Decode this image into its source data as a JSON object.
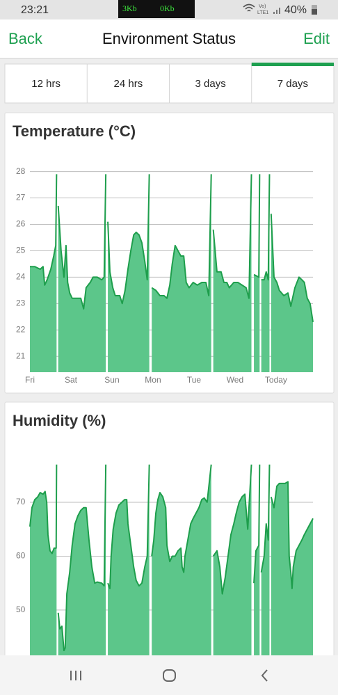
{
  "status_bar": {
    "time": "23:21",
    "upload": "3Kb",
    "download": "0Kb",
    "volte": "Vo)",
    "network": "LTE1",
    "battery": "40%"
  },
  "nav": {
    "back": "Back",
    "title": "Environment Status",
    "edit": "Edit"
  },
  "tabs": {
    "items": [
      "12 hrs",
      "24 hrs",
      "3 days",
      "7 days"
    ],
    "selected": 3
  },
  "chart_data": [
    {
      "type": "area",
      "title": "Temperature (°C)",
      "color": "#5cc68a",
      "line_color": "#1e9e4c",
      "grid": true,
      "xlim": [
        0,
        6.9
      ],
      "ylim": [
        20.4,
        28.2
      ],
      "yticks": [
        21,
        22,
        23,
        24,
        25,
        26,
        27,
        28
      ],
      "xticks": [
        {
          "value": 0,
          "label": "Fri"
        },
        {
          "value": 1,
          "label": "Sat"
        },
        {
          "value": 2,
          "label": "Sun"
        },
        {
          "value": 3,
          "label": "Mon"
        },
        {
          "value": 4,
          "label": "Tue"
        },
        {
          "value": 5,
          "label": "Wed"
        },
        {
          "value": 6,
          "label": "Today"
        }
      ],
      "x": [
        0,
        0.12,
        0.25,
        0.32,
        0.36,
        0.42,
        0.51,
        0.58,
        0.63,
        0.65,
        0.67,
        0.69,
        0.76,
        0.83,
        0.88,
        0.92,
        0.97,
        1.03,
        1.14,
        1.24,
        1.31,
        1.37,
        1.47,
        1.54,
        1.64,
        1.75,
        1.81,
        1.85,
        1.87,
        1.9,
        1.95,
        2.02,
        2.08,
        2.19,
        2.25,
        2.32,
        2.39,
        2.46,
        2.53,
        2.59,
        2.66,
        2.73,
        2.8,
        2.86,
        2.91,
        2.94,
        2.97,
        3.07,
        3.17,
        3.27,
        3.34,
        3.41,
        3.47,
        3.54,
        3.61,
        3.68,
        3.75,
        3.81,
        3.88,
        3.98,
        4.08,
        4.19,
        4.29,
        4.36,
        4.42,
        4.45,
        4.47,
        4.56,
        4.66,
        4.73,
        4.8,
        4.86,
        4.97,
        5.07,
        5.17,
        5.27,
        5.34,
        5.4,
        5.43,
        5.46,
        5.58,
        5.6,
        5.62,
        5.64,
        5.71,
        5.76,
        5.81,
        5.84,
        5.86,
        5.88,
        5.95,
        6.02,
        6.08,
        6.19,
        6.29,
        6.36,
        6.46,
        6.56,
        6.63,
        6.69,
        6.76,
        6.83,
        6.9
      ],
      "values": [
        24.4,
        24.4,
        24.3,
        24.4,
        23.7,
        23.9,
        24.3,
        24.8,
        25.2,
        27.9,
        null,
        26.7,
        25.0,
        24.0,
        25.2,
        23.8,
        23.4,
        23.2,
        23.2,
        23.2,
        22.8,
        23.6,
        23.8,
        24.0,
        24.0,
        23.9,
        24.0,
        27.9,
        null,
        26.1,
        24.2,
        23.6,
        23.3,
        23.3,
        23.0,
        23.5,
        24.3,
        25.0,
        25.6,
        25.7,
        25.6,
        25.3,
        24.6,
        23.9,
        27.9,
        null,
        23.6,
        23.5,
        23.3,
        23.3,
        23.2,
        23.7,
        24.5,
        25.2,
        25.0,
        24.8,
        24.8,
        23.8,
        23.6,
        23.8,
        23.7,
        23.8,
        23.8,
        23.3,
        27.9,
        null,
        25.8,
        24.2,
        24.2,
        23.8,
        23.8,
        23.6,
        23.8,
        23.8,
        23.7,
        23.6,
        23.2,
        27.9,
        null,
        24.1,
        24.0,
        27.9,
        null,
        23.9,
        23.9,
        24.2,
        23.9,
        27.9,
        null,
        26.4,
        24.0,
        23.8,
        23.5,
        23.3,
        23.4,
        22.9,
        23.6,
        24.0,
        23.9,
        23.8,
        23.2,
        23.0,
        22.3
      ]
    },
    {
      "type": "area",
      "title": "Humidity (%)",
      "color": "#5cc68a",
      "line_color": "#1e9e4c",
      "grid": true,
      "xlim": [
        0,
        6.9
      ],
      "ylim": [
        41.6,
        78
      ],
      "yticks": [
        50,
        60,
        70
      ],
      "x": [
        0,
        0.05,
        0.12,
        0.19,
        0.25,
        0.32,
        0.37,
        0.41,
        0.44,
        0.49,
        0.54,
        0.59,
        0.64,
        0.65,
        0.67,
        0.69,
        0.73,
        0.78,
        0.83,
        0.86,
        0.9,
        0.97,
        1.03,
        1.1,
        1.17,
        1.24,
        1.31,
        1.37,
        1.44,
        1.51,
        1.58,
        1.64,
        1.75,
        1.81,
        1.85,
        1.87,
        1.9,
        1.95,
        1.98,
        2.03,
        2.1,
        2.17,
        2.24,
        2.31,
        2.36,
        2.39,
        2.46,
        2.53,
        2.59,
        2.66,
        2.73,
        2.8,
        2.86,
        2.91,
        2.94,
        2.97,
        3.02,
        3.07,
        3.12,
        3.17,
        3.24,
        3.31,
        3.34,
        3.41,
        3.47,
        3.54,
        3.61,
        3.68,
        3.71,
        3.75,
        3.78,
        3.85,
        3.92,
        3.98,
        4.05,
        4.12,
        4.19,
        4.25,
        4.32,
        4.42,
        4.45,
        4.47,
        4.56,
        4.63,
        4.69,
        4.76,
        4.83,
        4.9,
        4.97,
        5.03,
        5.1,
        5.17,
        5.24,
        5.31,
        5.4,
        5.43,
        5.46,
        5.51,
        5.58,
        5.6,
        5.62,
        5.64,
        5.71,
        5.76,
        5.81,
        5.84,
        5.86,
        5.88,
        5.95,
        6.02,
        6.08,
        6.15,
        6.22,
        6.29,
        6.32,
        6.36,
        6.39,
        6.42,
        6.49,
        6.56,
        6.63,
        6.69,
        6.76,
        6.83,
        6.9
      ],
      "values": [
        65.5,
        69,
        70.5,
        71,
        71.8,
        71.5,
        72,
        70,
        64,
        61,
        60.5,
        61.5,
        61.5,
        77,
        null,
        49.5,
        46.5,
        47,
        42.5,
        43,
        53,
        57,
        62,
        66,
        67.5,
        68.5,
        69,
        69,
        63,
        58,
        55,
        55.2,
        55,
        54.5,
        77,
        null,
        55,
        54,
        60,
        65,
        68,
        69.5,
        70,
        70.5,
        70.5,
        66,
        62,
        58,
        55.5,
        54.5,
        55,
        58,
        60,
        77,
        null,
        60,
        63,
        68,
        70.5,
        71.8,
        71,
        69,
        62,
        59,
        60,
        60,
        61,
        61.5,
        58,
        57,
        60,
        63,
        66,
        67,
        68,
        69,
        70.5,
        70.8,
        70,
        77,
        null,
        60,
        61,
        58,
        53,
        56,
        60,
        64,
        66,
        68,
        70,
        71,
        71.5,
        65,
        77,
        null,
        55,
        61,
        62,
        77,
        null,
        57,
        60,
        66,
        63,
        77,
        null,
        71,
        69,
        73,
        73.5,
        73.5,
        73.5,
        73.8,
        60,
        57,
        54,
        58,
        61,
        62,
        63,
        64,
        65,
        66,
        67
      ]
    }
  ]
}
